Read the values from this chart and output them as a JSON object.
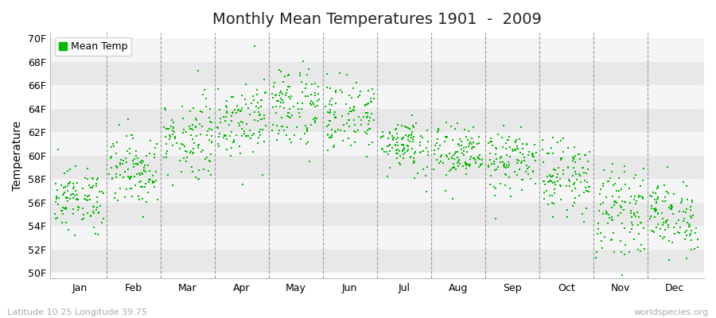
{
  "title": "Monthly Mean Temperatures 1901  -  2009",
  "ylabel": "Temperature",
  "xlabel_labels": [
    "Jan",
    "Feb",
    "Mar",
    "Apr",
    "May",
    "Jun",
    "Jul",
    "Aug",
    "Sep",
    "Oct",
    "Nov",
    "Dec"
  ],
  "ytick_labels": [
    "50F",
    "52F",
    "54F",
    "56F",
    "58F",
    "60F",
    "62F",
    "64F",
    "66F",
    "68F",
    "70F"
  ],
  "ytick_values": [
    50,
    52,
    54,
    56,
    58,
    60,
    62,
    64,
    66,
    68,
    70
  ],
  "ylim": [
    49.5,
    70.5
  ],
  "legend_label": "Mean Temp",
  "dot_color": "#00bb00",
  "bg_color": "#ffffff",
  "band_color_a": "#f5f5f5",
  "band_color_b": "#e8e8e8",
  "footer_left": "Latitude 10.25 Longitude 39.75",
  "footer_right": "worldspecies.org",
  "title_fontsize": 14,
  "axis_label_fontsize": 10,
  "tick_fontsize": 9,
  "footer_fontsize": 8,
  "num_years": 109,
  "monthly_means": [
    56.3,
    58.8,
    61.5,
    63.2,
    64.2,
    63.4,
    61.0,
    60.1,
    59.5,
    58.2,
    55.3,
    54.8
  ],
  "monthly_stds": [
    1.3,
    1.5,
    1.8,
    1.6,
    1.8,
    1.5,
    1.2,
    1.2,
    1.3,
    1.5,
    1.8,
    1.5
  ]
}
